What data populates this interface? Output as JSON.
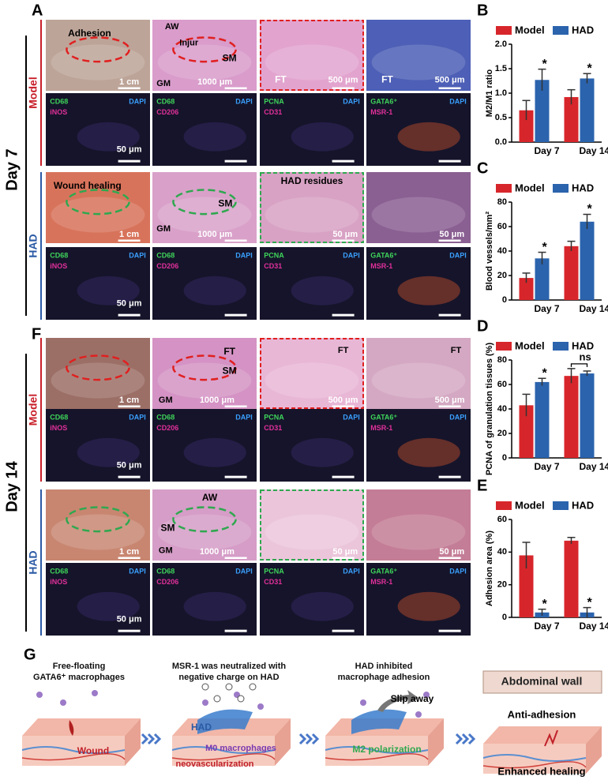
{
  "panel_A": {
    "label": "A",
    "day": "Day 7",
    "groups": [
      {
        "name": "Model",
        "rows": [
          [
            [
              "Adhesion",
              "1 cm"
            ],
            [
              "AW",
              "Injur",
              "SM",
              "GM",
              "1000 μm"
            ],
            [
              "FT",
              "500 μm"
            ],
            [
              "FT",
              "500 μm"
            ]
          ],
          [
            [
              "CD68",
              "DAPI",
              "iNOS",
              "50 μm"
            ],
            [
              "CD68",
              "DAPI",
              "CD206"
            ],
            [
              "PCNA",
              "DAPI",
              "CD31"
            ],
            [
              "GATA6⁺",
              "DAPI",
              "MSR-1"
            ]
          ]
        ]
      },
      {
        "name": "HAD",
        "rows": [
          [
            [
              "Wound healing",
              "1 cm"
            ],
            [
              "SM",
              "GM",
              "1000 μm"
            ],
            [
              "HAD residues",
              "50 μm"
            ],
            [
              "50 μm"
            ]
          ],
          [
            [
              "CD68",
              "DAPI",
              "iNOS",
              "50 μm"
            ],
            [
              "CD68",
              "DAPI",
              "CD206"
            ],
            [
              "PCNA",
              "DAPI",
              "CD31"
            ],
            [
              "GATA6⁺",
              "DAPI",
              "MSR-1"
            ]
          ]
        ]
      }
    ]
  },
  "panel_F": {
    "label": "F",
    "day": "Day 14",
    "groups": [
      {
        "name": "Model",
        "rows": [
          [
            [
              "1 cm"
            ],
            [
              "FT",
              "SM",
              "GM",
              "1000 μm"
            ],
            [
              "FT",
              "500 μm"
            ],
            [
              "FT",
              "500 μm"
            ]
          ],
          [
            [
              "CD68",
              "DAPI",
              "iNOS",
              "50 μm"
            ],
            [
              "CD68",
              "DAPI",
              "CD206"
            ],
            [
              "PCNA",
              "DAPI",
              "CD31"
            ],
            [
              "GATA6⁺",
              "DAPI",
              "MSR-1"
            ]
          ]
        ]
      },
      {
        "name": "HAD",
        "rows": [
          [
            [
              "1 cm"
            ],
            [
              "AW",
              "SM",
              "GM",
              "1000 μm"
            ],
            [
              "50 μm"
            ],
            [
              "50 μm"
            ]
          ],
          [
            [
              "CD68",
              "DAPI",
              "iNOS",
              "50 μm"
            ],
            [
              "CD68",
              "DAPI",
              "CD206"
            ],
            [
              "PCNA",
              "DAPI",
              "CD31"
            ],
            [
              "GATA6⁺",
              "DAPI",
              "MSR-1"
            ]
          ]
        ]
      }
    ]
  },
  "chart_data": [
    {
      "type": "bar",
      "label": "B",
      "ylabel": "M2/M1 ratio",
      "categories": [
        "Day 7",
        "Day 14"
      ],
      "series": [
        {
          "name": "Model",
          "color": "#d7262b",
          "values": [
            0.65,
            0.92
          ],
          "errors": [
            0.2,
            0.15
          ]
        },
        {
          "name": "HAD",
          "color": "#2b63ad",
          "values": [
            1.27,
            1.3
          ],
          "errors": [
            0.22,
            0.1
          ]
        }
      ],
      "ylim": [
        0,
        2
      ],
      "yticks": [
        {
          "value": 0,
          "label": "0.0"
        },
        {
          "value": 0.5,
          "label": "0.5"
        },
        {
          "value": 1,
          "label": "1.0"
        },
        {
          "value": 1.5,
          "label": "1.5"
        },
        {
          "value": 2,
          "label": "2.0"
        }
      ],
      "annotations": [
        "*",
        "*"
      ]
    },
    {
      "type": "bar",
      "label": "C",
      "ylabel": "Blood vessels/mm²",
      "categories": [
        "Day 7",
        "Day 14"
      ],
      "series": [
        {
          "name": "Model",
          "color": "#d7262b",
          "values": [
            18,
            44
          ],
          "errors": [
            4,
            4
          ]
        },
        {
          "name": "HAD",
          "color": "#2b63ad",
          "values": [
            34,
            64
          ],
          "errors": [
            5,
            6
          ]
        }
      ],
      "ylim": [
        0,
        80
      ],
      "yticks": [
        0,
        20,
        40,
        60,
        80
      ],
      "annotations": [
        "*",
        "*"
      ]
    },
    {
      "type": "bar",
      "label": "D",
      "ylabel": "PCNA of granulation tissues (%)",
      "categories": [
        "Day 7",
        "Day 14"
      ],
      "series": [
        {
          "name": "Model",
          "color": "#d7262b",
          "values": [
            43,
            67
          ],
          "errors": [
            9,
            6
          ]
        },
        {
          "name": "HAD",
          "color": "#2b63ad",
          "values": [
            62,
            69
          ],
          "errors": [
            3,
            2
          ]
        }
      ],
      "ylim": [
        0,
        80
      ],
      "yticks": [
        0,
        20,
        40,
        60,
        80
      ],
      "annotations": [
        "*"
      ],
      "bracket_label": "ns"
    },
    {
      "type": "bar",
      "label": "E",
      "ylabel": "Adhesion area (%)",
      "categories": [
        "Day 7",
        "Day 14"
      ],
      "series": [
        {
          "name": "Model",
          "color": "#d7262b",
          "values": [
            38,
            47
          ],
          "errors": [
            8,
            2
          ]
        },
        {
          "name": "HAD",
          "color": "#2b63ad",
          "values": [
            3,
            3
          ],
          "errors": [
            2,
            3
          ]
        }
      ],
      "ylim": [
        0,
        60
      ],
      "yticks": [
        0,
        20,
        40,
        60
      ],
      "annotations": [
        "*",
        "*"
      ]
    }
  ],
  "panel_G": {
    "label": "G",
    "steps": [
      {
        "caption": [
          "Free-floating",
          "GATA6⁺ macrophages"
        ],
        "labels": [
          "Wound"
        ]
      },
      {
        "caption": [
          "MSR-1 was neutralized with",
          "negative charge on HAD"
        ],
        "labels": [
          "HAD",
          "M0 macrophages",
          "neovascularization"
        ]
      },
      {
        "caption": [
          "HAD inhibited",
          "macrophage adhesion"
        ],
        "labels": [
          "Slip away",
          "M2 polarization"
        ]
      },
      {
        "labels": [
          "Abdominal wall",
          "Anti-adhesion",
          "Enhanced healing"
        ]
      }
    ]
  }
}
